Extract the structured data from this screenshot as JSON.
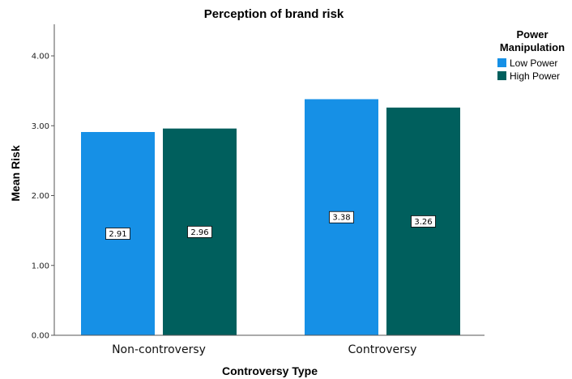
{
  "chart_data": {
    "type": "bar",
    "title": "Perception of brand risk",
    "xlabel": "Controversy Type",
    "ylabel": "Mean Risk",
    "categories": [
      "Non-controversy",
      "Controversy"
    ],
    "series": [
      {
        "name": "Low Power",
        "values": [
          2.91,
          3.38
        ],
        "color": "#1690e6"
      },
      {
        "name": "High Power",
        "values": [
          2.96,
          3.26
        ],
        "color": "#005f5d"
      }
    ],
    "data_labels": [
      [
        "2.91",
        "3.38"
      ],
      [
        "2.96",
        "3.26"
      ]
    ],
    "ylim": [
      0,
      4.4
    ],
    "yticks": [
      "0.00",
      "1.00",
      "2.00",
      "3.00",
      "4.00"
    ],
    "ytick_values": [
      0,
      1,
      2,
      3,
      4
    ],
    "legend": {
      "title_line1": "Power",
      "title_line2": "Manipulation",
      "placement": "top-right"
    },
    "grid": false
  }
}
